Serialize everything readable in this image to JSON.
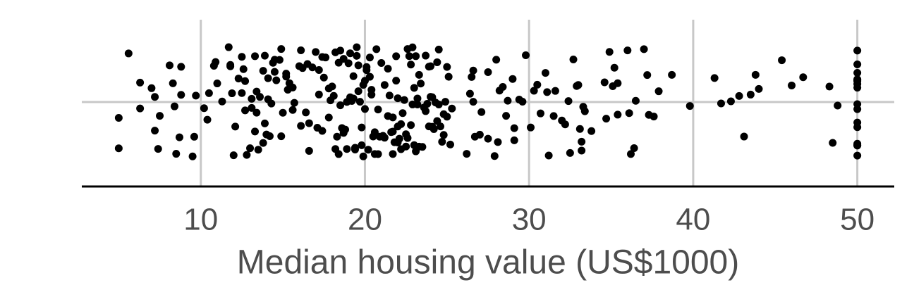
{
  "chart_data": {
    "type": "strip",
    "xlabel": "Median housing value (US$1000)",
    "color": "#000000",
    "grid": true,
    "xlim": [
      2.75,
      52.25
    ],
    "xticks": [
      10,
      20,
      30,
      40,
      50
    ],
    "values": [
      5.0,
      5.6,
      6.3,
      7.0,
      7.2,
      7.5,
      8.1,
      8.3,
      8.4,
      8.5,
      8.7,
      8.8,
      9.5,
      9.6,
      9.7,
      7.4,
      8.8,
      5.0,
      6.3,
      7.2,
      10.2,
      10.4,
      10.5,
      10.9,
      11.0,
      11.3,
      11.7,
      11.8,
      11.9,
      12.0,
      12.1,
      12.3,
      12.5,
      12.6,
      12.7,
      12.8,
      13.0,
      13.1,
      13.3,
      13.4,
      13.5,
      13.6,
      13.8,
      13.9,
      14.0,
      14.1,
      14.3,
      14.4,
      14.5,
      14.6,
      14.8,
      14.9,
      13.1,
      13.4,
      13.8,
      14.1,
      14.5,
      12.7,
      11.8,
      10.8,
      13.3,
      14.2,
      14.9,
      12.5,
      13.9,
      15.0,
      15.2,
      15.3,
      15.4,
      15.6,
      15.7,
      16.0,
      16.1,
      16.2,
      16.4,
      16.5,
      16.6,
      16.8,
      17.0,
      17.1,
      17.2,
      17.4,
      17.5,
      17.6,
      17.8,
      17.9,
      18.0,
      18.1,
      18.2,
      18.3,
      18.4,
      18.5,
      18.6,
      18.7,
      18.8,
      18.9,
      19.0,
      19.1,
      19.2,
      19.3,
      19.4,
      19.5,
      19.6,
      19.7,
      19.8,
      19.9,
      15.6,
      16.1,
      16.6,
      17.2,
      17.8,
      18.2,
      18.5,
      18.9,
      19.1,
      19.3,
      19.4,
      19.6,
      19.9,
      15.2,
      17.4,
      18.4,
      18.7,
      19.5,
      19.8,
      20.0,
      20.1,
      20.2,
      20.3,
      20.4,
      20.5,
      20.6,
      20.7,
      20.8,
      20.9,
      21.0,
      21.1,
      21.2,
      21.4,
      21.5,
      21.6,
      21.7,
      21.8,
      21.9,
      22.0,
      22.1,
      22.2,
      22.3,
      22.4,
      22.5,
      22.6,
      22.7,
      22.8,
      22.9,
      23.0,
      23.1,
      23.2,
      23.3,
      23.4,
      23.5,
      23.6,
      23.7,
      23.8,
      23.9,
      24.0,
      24.1,
      24.2,
      24.3,
      24.4,
      24.5,
      24.6,
      24.7,
      24.8,
      24.9,
      25.0,
      20.1,
      20.4,
      20.6,
      21.2,
      21.7,
      22.0,
      22.2,
      22.6,
      22.9,
      23.1,
      23.3,
      23.9,
      24.1,
      24.4,
      24.8,
      25.0,
      20.0,
      20.3,
      20.8,
      21.4,
      21.9,
      22.5,
      22.8,
      23.2,
      23.7,
      24.0,
      24.5,
      23.0,
      22.0,
      21.7,
      25.1,
      25.2,
      26.2,
      26.4,
      26.5,
      26.6,
      26.7,
      27.0,
      27.1,
      27.5,
      27.9,
      28.0,
      28.1,
      28.4,
      28.6,
      28.7,
      29.0,
      29.1,
      29.4,
      29.6,
      29.8,
      26.6,
      27.5,
      28.2,
      29.1,
      25.3,
      30.1,
      30.3,
      30.5,
      30.7,
      31.0,
      31.1,
      31.5,
      31.6,
      32.0,
      32.2,
      32.4,
      32.7,
      32.9,
      33.0,
      33.1,
      33.2,
      33.3,
      33.4,
      33.8,
      34.6,
      34.7,
      34.9,
      31.2,
      32.5,
      33.2,
      35.1,
      35.2,
      35.4,
      35.4,
      36.0,
      36.1,
      36.2,
      36.4,
      36.5,
      37.0,
      37.2,
      37.3,
      37.6,
      37.9,
      38.7,
      39.8,
      41.3,
      41.7,
      42.3,
      42.8,
      43.1,
      43.5,
      43.8,
      44.0,
      45.4,
      46.0,
      46.7,
      48.3,
      48.5,
      48.8,
      50.0,
      50.0,
      50.0,
      50.0,
      50.0,
      50.0,
      50.0,
      50.0,
      50.0,
      50.0,
      50.0,
      50.0,
      50.0,
      50.0,
      50.0,
      50.0
    ]
  }
}
